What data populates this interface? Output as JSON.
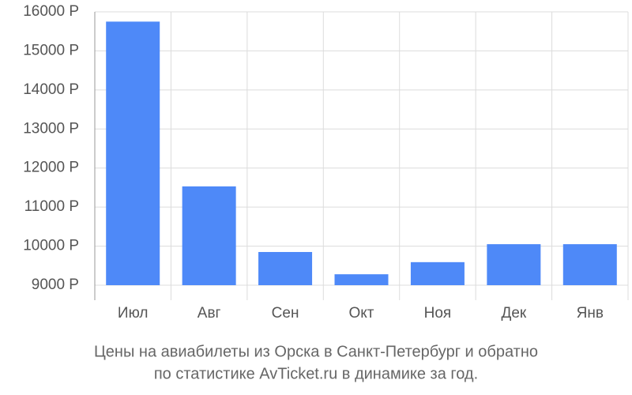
{
  "chart_data": {
    "type": "bar",
    "title": [
      "Цены на авиабилеты из Орска в Санкт-Петербург и обратно",
      "по статистике AvTicket.ru в динамике за год."
    ],
    "categories": [
      "Июл",
      "Авг",
      "Сен",
      "Окт",
      "Ноя",
      "Дек",
      "Янв"
    ],
    "values": [
      15750,
      11530,
      9850,
      9280,
      9590,
      10050,
      10050
    ],
    "color": "#4e89f8",
    "ylim": [
      9000,
      16000
    ],
    "yticks": [
      {
        "value": 9000,
        "label": "9000 Р"
      },
      {
        "value": 10000,
        "label": "10000 Р"
      },
      {
        "value": 11000,
        "label": "11000 Р"
      },
      {
        "value": 12000,
        "label": "12000 Р"
      },
      {
        "value": 13000,
        "label": "13000 Р"
      },
      {
        "value": 14000,
        "label": "14000 Р"
      },
      {
        "value": 15000,
        "label": "15000 Р"
      },
      {
        "value": 16000,
        "label": "16000 Р"
      }
    ],
    "grid": true
  }
}
